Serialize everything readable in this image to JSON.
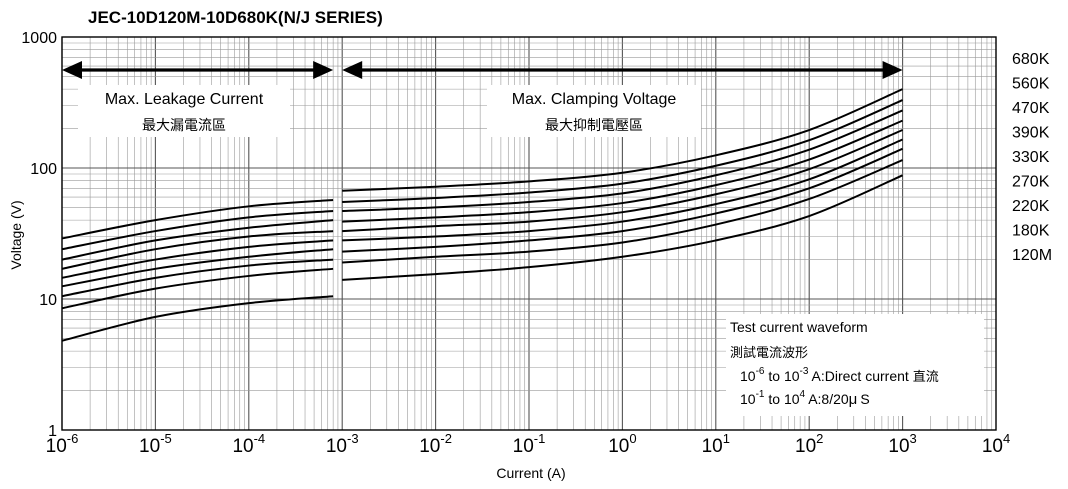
{
  "chart_data": {
    "type": "line",
    "title": "JEC-10D120M-10D680K(N/J SERIES)",
    "xlabel": "Current (A)",
    "ylabel": "Voltage (V)",
    "x_scale": "log",
    "y_scale": "log",
    "xlim": [
      1e-06,
      10000
    ],
    "ylim": [
      1,
      1000
    ],
    "grid": true,
    "x_tick_labels": [
      {
        "value": 1e-06,
        "base": "10",
        "exp": "-6"
      },
      {
        "value": 1e-05,
        "base": "10",
        "exp": "-5"
      },
      {
        "value": 0.0001,
        "base": "10",
        "exp": "-4"
      },
      {
        "value": 0.001,
        "base": "10",
        "exp": "-3"
      },
      {
        "value": 0.01,
        "base": "10",
        "exp": "-2"
      },
      {
        "value": 0.1,
        "base": "10",
        "exp": "-1"
      },
      {
        "value": 1,
        "base": "10",
        "exp": "0"
      },
      {
        "value": 10,
        "base": "10",
        "exp": "1"
      },
      {
        "value": 100,
        "base": "10",
        "exp": "2"
      },
      {
        "value": 1000,
        "base": "10",
        "exp": "3"
      },
      {
        "value": 10000,
        "base": "10",
        "exp": "4"
      }
    ],
    "y_tick_labels": [
      {
        "value": 1,
        "label": "1"
      },
      {
        "value": 10,
        "label": "10"
      },
      {
        "value": 100,
        "label": "100"
      },
      {
        "value": 1000,
        "label": "1000"
      }
    ],
    "legend_placement": "right",
    "legend_labels": [
      "680K",
      "560K",
      "470K",
      "390K",
      "330K",
      "270K",
      "220K",
      "180K",
      "120M"
    ],
    "regions": [
      {
        "label": "Max. Leakage Current",
        "label_cn": "最大漏電流區",
        "x_start": 1e-06,
        "x_end": 0.0008
      },
      {
        "label": "Max. Clamping Voltage",
        "label_cn": "最大抑制電壓區",
        "x_start": 0.001,
        "x_end": 1000
      }
    ],
    "annotation": {
      "title": "Test current waveform",
      "title_cn": "測試電流波形",
      "line1_a": "10",
      "line1_a_exp": "-6",
      "line1_b": " to 10",
      "line1_b_exp": "-3",
      "line1_c": " A:Direct current ",
      "line1_cn": "直流",
      "line2_a": "10",
      "line2_a_exp": "-1",
      "line2_b": " to 10",
      "line2_b_exp": "4",
      "line2_c": "  A:8/20",
      "line2_mu": "μ",
      "line2_d": "S"
    },
    "leakage_x": [
      1e-06,
      1e-05,
      0.0001,
      0.0008
    ],
    "clamp_x": [
      0.001,
      0.01,
      0.1,
      1,
      10,
      100,
      1000
    ],
    "series": [
      {
        "leakage": [
          29,
          40,
          51,
          57
        ],
        "clamp": [
          67,
          72,
          79,
          92,
          125,
          195,
          400
        ]
      },
      {
        "leakage": [
          24,
          33,
          42,
          47
        ],
        "clamp": [
          55,
          59,
          65,
          76,
          104,
          163,
          330
        ]
      },
      {
        "leakage": [
          20,
          28,
          35,
          40
        ],
        "clamp": [
          47,
          50,
          55,
          64,
          88,
          138,
          275
        ]
      },
      {
        "leakage": [
          17,
          24,
          30,
          33
        ],
        "clamp": [
          39,
          42,
          46,
          54,
          74,
          116,
          230
        ]
      },
      {
        "leakage": [
          14.5,
          20,
          25,
          28
        ],
        "clamp": [
          33,
          36,
          39,
          46,
          63,
          98,
          195
        ]
      },
      {
        "leakage": [
          12.5,
          17,
          21,
          24
        ],
        "clamp": [
          28,
          30,
          33,
          39,
          53,
          82,
          165
        ]
      },
      {
        "leakage": [
          10.5,
          14.5,
          18,
          20
        ],
        "clamp": [
          23,
          25,
          28,
          33,
          45,
          70,
          140
        ]
      },
      {
        "leakage": [
          8.5,
          12,
          15,
          17
        ],
        "clamp": [
          19,
          21,
          23,
          27,
          37,
          58,
          115
        ]
      },
      {
        "leakage": [
          4.8,
          7.3,
          9.3,
          10.5
        ],
        "clamp": [
          14,
          15.5,
          17.5,
          21,
          28,
          43,
          88
        ]
      }
    ]
  }
}
